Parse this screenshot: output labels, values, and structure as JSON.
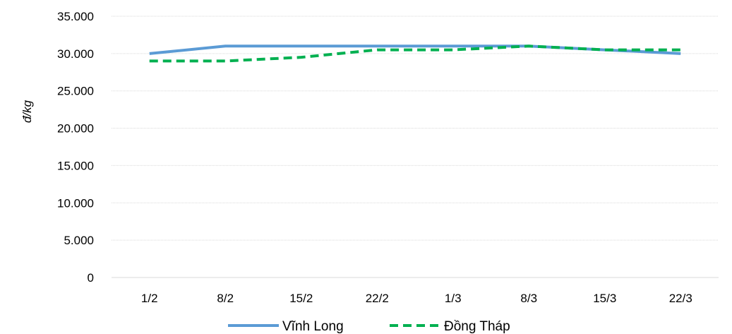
{
  "chart_data": {
    "type": "line",
    "categories": [
      "1/2",
      "8/2",
      "15/2",
      "22/2",
      "1/3",
      "8/3",
      "15/3",
      "22/3"
    ],
    "series": [
      {
        "name": "Vĩnh Long",
        "values": [
          30000,
          31000,
          31000,
          31000,
          31000,
          31000,
          30500,
          30000
        ],
        "color": "#5B9BD5",
        "style": "solid"
      },
      {
        "name": "Đồng Tháp",
        "values": [
          29000,
          29000,
          29500,
          30500,
          30500,
          31000,
          30500,
          30500
        ],
        "color": "#00B050",
        "style": "dashed"
      }
    ],
    "ylabel": "đ/kg",
    "xlabel": "",
    "ylim": [
      0,
      35000
    ],
    "yticks": [
      "0",
      "5.000",
      "10.000",
      "15.000",
      "20.000",
      "25.000",
      "30.000",
      "35.000"
    ],
    "grid": true,
    "legend": "bottom"
  }
}
